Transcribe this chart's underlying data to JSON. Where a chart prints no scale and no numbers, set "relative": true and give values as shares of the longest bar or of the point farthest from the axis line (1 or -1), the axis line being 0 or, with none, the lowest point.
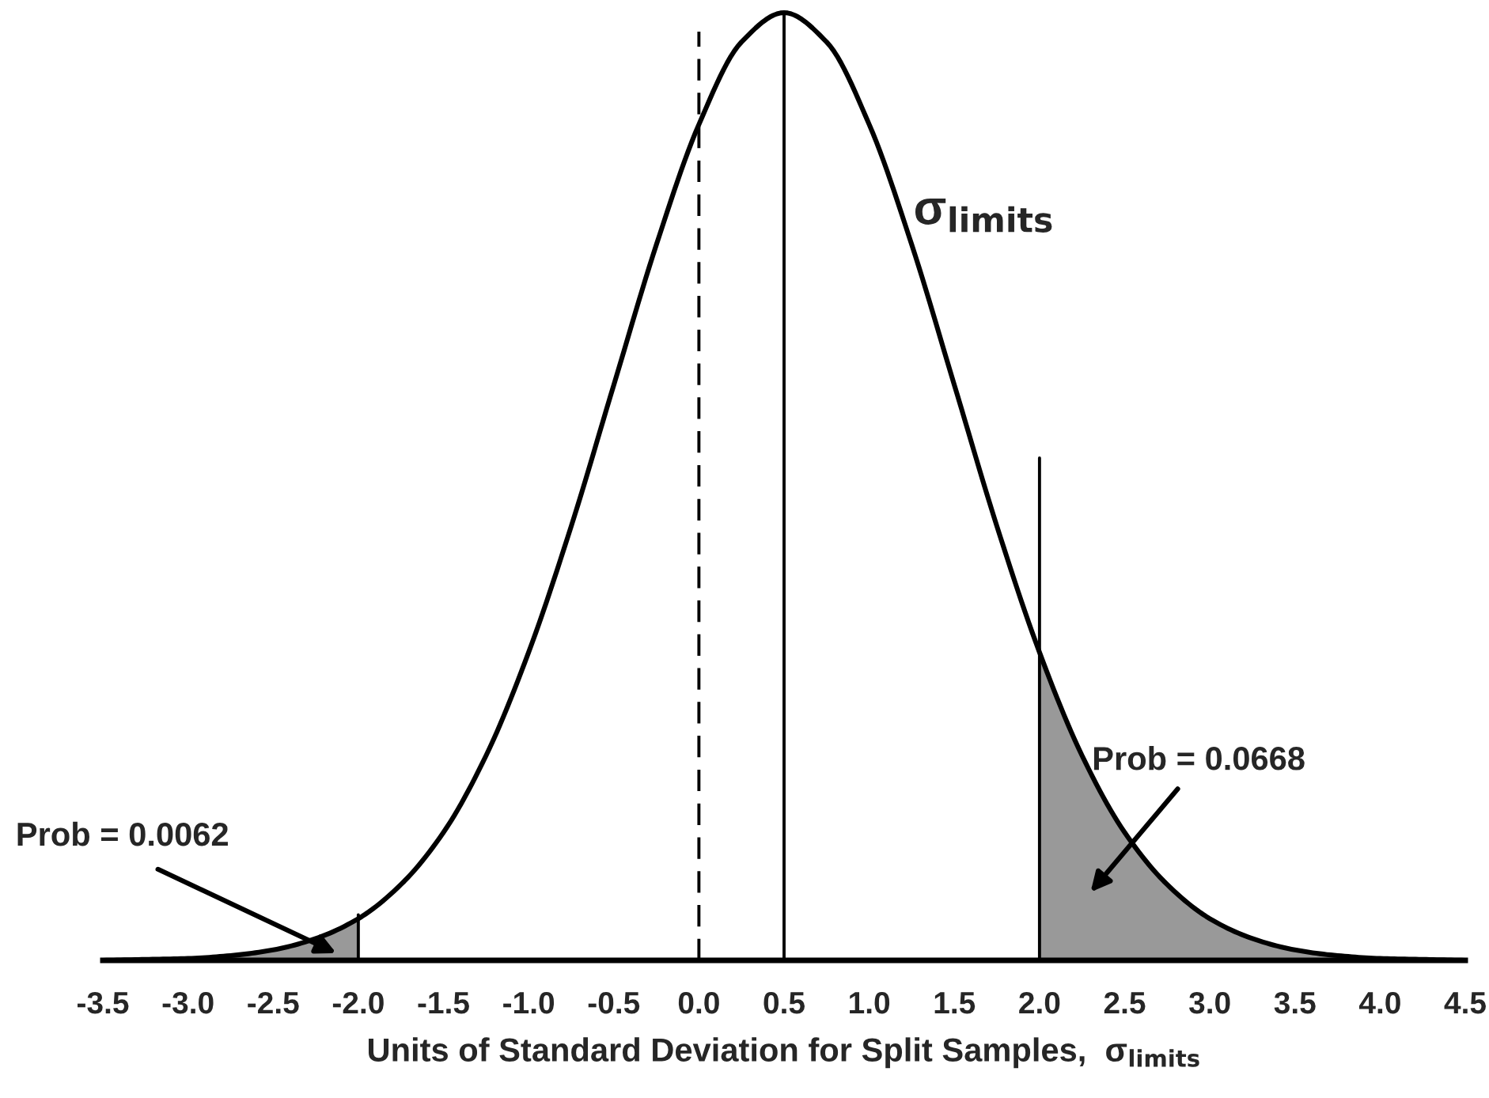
{
  "chart_data": {
    "type": "line",
    "relative": true,
    "xlabel": "Units of Standard Deviation for Split Samples,  σ$_{limits}$",
    "xlim": [
      -3.5,
      4.5
    ],
    "xticks": [
      -3.5,
      {
        "value": -3,
        "label": "-3.0"
      },
      -2.5,
      {
        "value": -2,
        "label": "-2.0"
      },
      -1.5,
      {
        "value": -1,
        "label": "-1.0"
      },
      -0.5,
      {
        "value": 0,
        "label": "0.0"
      },
      0.5,
      {
        "value": 1,
        "label": "1.0"
      },
      1.5,
      {
        "value": 2,
        "label": "2.0"
      },
      2.5,
      {
        "value": 3,
        "label": "3.0"
      },
      3.5,
      {
        "value": 4,
        "label": "4.0"
      },
      4.5
    ],
    "grid": false,
    "legend": false,
    "series": [
      {
        "type": "area",
        "color": "#999999",
        "x": [
          -3.5,
          -3.25,
          -3,
          -2.75,
          -2.5,
          -2.25,
          -2
        ],
        "values": [
          0.0,
          0.001,
          0.002,
          0.005,
          0.011,
          0.023,
          0.044
        ]
      },
      {
        "type": "area",
        "color": "#999999",
        "x": [
          2,
          2.25,
          2.5,
          2.75,
          3,
          3.25,
          3.5,
          3.75,
          4,
          4.25,
          4.5
        ],
        "values": [
          0.325,
          0.216,
          0.135,
          0.08,
          0.044,
          0.023,
          0.011,
          0.005,
          0.002,
          0.001,
          0.0
        ]
      },
      {
        "type": "line",
        "color": "#000000",
        "line_style": "dashed",
        "x": [
          0,
          0
        ],
        "values": [
          0,
          0.98
        ]
      },
      {
        "type": "line",
        "color": "#000000",
        "line_style": "solid",
        "x": [
          0.5,
          0.5
        ],
        "values": [
          0,
          1
        ]
      },
      {
        "type": "line",
        "color": "#000000",
        "line_style": "solid",
        "x": [
          -2,
          -2
        ],
        "values": [
          0,
          0.048
        ]
      },
      {
        "type": "line",
        "color": "#000000",
        "line_style": "solid",
        "x": [
          2,
          2
        ],
        "values": [
          0,
          0.53
        ]
      },
      {
        "name": "σ$_{limits}$",
        "color": "#000000",
        "line_style": "solid",
        "x": [
          -3.5,
          -3.25,
          -3,
          -2.75,
          -2.5,
          -2.25,
          -2,
          -1.75,
          -1.5,
          -1.25,
          -1,
          -0.75,
          -0.5,
          -0.25,
          0,
          0.25,
          0.5,
          0.75,
          1,
          1.25,
          1.5,
          1.75,
          2,
          2.25,
          2.5,
          2.75,
          3,
          3.25,
          3.5,
          3.75,
          4,
          4.25,
          4.5
        ],
        "values": [
          0.0,
          0.001,
          0.002,
          0.005,
          0.011,
          0.023,
          0.044,
          0.08,
          0.135,
          0.216,
          0.325,
          0.458,
          0.607,
          0.755,
          0.882,
          0.969,
          1,
          0.969,
          0.882,
          0.755,
          0.607,
          0.458,
          0.325,
          0.216,
          0.135,
          0.08,
          0.044,
          0.023,
          0.011,
          0.005,
          0.002,
          0.001,
          0.0
        ]
      }
    ],
    "annotations": [
      "Prob = 0.0062",
      "Prob = 0.0668"
    ]
  }
}
